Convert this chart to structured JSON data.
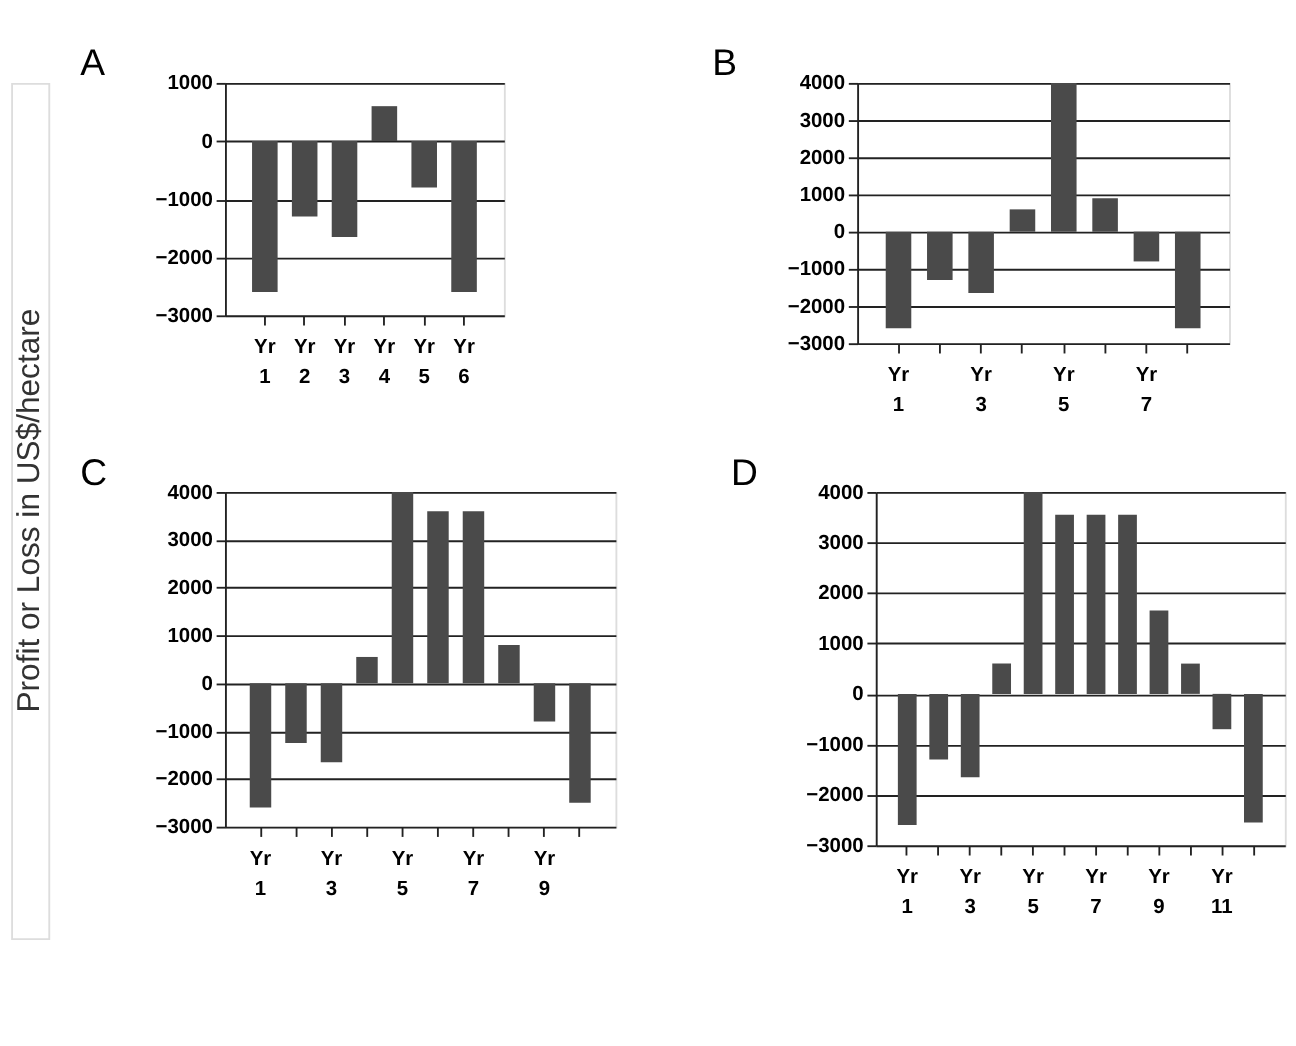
{
  "chart_data": [
    {
      "type": "bar",
      "title": "A",
      "ylabel": "Profit or Loss in US$/hectare",
      "categories": [
        "Yr 1",
        "Yr 2",
        "Yr 3",
        "Yr 4",
        "Yr 5",
        "Yr 6"
      ],
      "values": [
        -2600,
        -1300,
        -1650,
        600,
        -800,
        -2600
      ],
      "color": "#4a4a4a",
      "ylim": [
        -3000,
        1000
      ],
      "yticks": [
        -3000,
        -2000,
        -1000,
        0,
        1000
      ],
      "grid": "y"
    },
    {
      "type": "bar",
      "title": "B",
      "categories": [
        "Yr 1",
        null,
        "Yr 3",
        null,
        "Yr 5",
        null,
        "Yr 7",
        null
      ],
      "values": [
        -2600,
        -1300,
        -1650,
        600,
        4000,
        900,
        -800,
        -2600
      ],
      "color": "#4a4a4a",
      "ylim": [
        -3000,
        4000
      ],
      "yticks": [
        -3000,
        -2000,
        -1000,
        0,
        1000,
        2000,
        3000,
        4000
      ],
      "grid": "y"
    },
    {
      "type": "bar",
      "title": "C",
      "categories": [
        "Yr 1",
        null,
        "Yr 3",
        null,
        "Yr 5",
        null,
        "Yr 7",
        null,
        "Yr 9",
        null
      ],
      "values": [
        -2600,
        -1250,
        -1650,
        550,
        4000,
        3600,
        3600,
        800,
        -800,
        -2500
      ],
      "color": "#4a4a4a",
      "ylim": [
        -3000,
        4000
      ],
      "yticks": [
        -3000,
        -2000,
        -1000,
        0,
        1000,
        2000,
        3000,
        4000
      ],
      "grid": "y"
    },
    {
      "type": "bar",
      "title": "D",
      "categories": [
        "Yr 1",
        null,
        "Yr 3",
        null,
        "Yr 5",
        null,
        "Yr 7",
        null,
        "Yr 9",
        null,
        "Yr 11",
        null
      ],
      "values": [
        -2600,
        -1300,
        -1650,
        600,
        4000,
        3550,
        3550,
        3550,
        1650,
        600,
        -700,
        -2550
      ],
      "color": "#4a4a4a",
      "ylim": [
        -3000,
        4000
      ],
      "yticks": [
        -3000,
        -2000,
        -1000,
        0,
        1000,
        2000,
        3000,
        4000
      ],
      "grid": "y"
    }
  ]
}
